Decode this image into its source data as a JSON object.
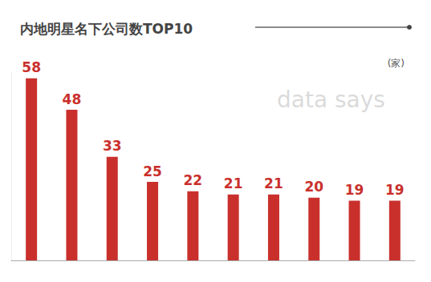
{
  "chart_data": {
    "type": "bar",
    "title": "内地明星名下公司数TOP10",
    "subtitle": "(家)",
    "categories": [
      null,
      null,
      null,
      null,
      null,
      null,
      null,
      null,
      null,
      null
    ],
    "values": [
      58,
      48,
      33,
      25,
      22,
      21,
      21,
      20,
      19,
      19
    ],
    "color": "#c9302c",
    "ylim": [
      0,
      60
    ],
    "grid": false,
    "data_labels": true,
    "tick_labels": false,
    "annotations": [
      "data says"
    ]
  }
}
